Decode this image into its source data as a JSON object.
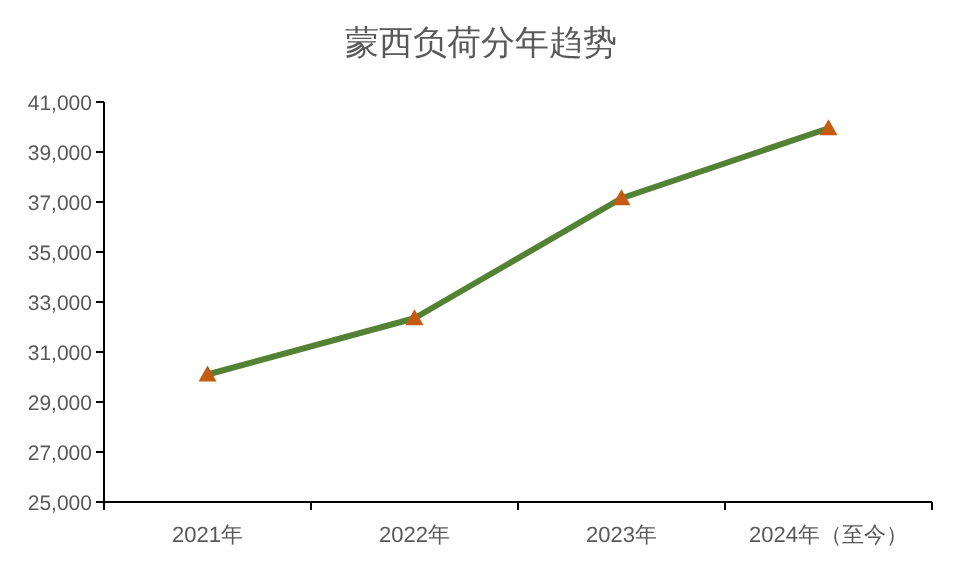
{
  "chart_data": {
    "type": "line",
    "title": "蒙西负荷分年趋势",
    "categories": [
      "2021年",
      "2022年",
      "2023年",
      "2024年（至今）"
    ],
    "series": [
      {
        "color": "#548235",
        "values": [
          30100,
          32350,
          37150,
          39950
        ]
      }
    ],
    "marker": "triangle",
    "ylim": [
      25000,
      41000
    ],
    "yticks": [
      {
        "value": 25000,
        "label": "25,000"
      },
      {
        "value": 27000,
        "label": "27,000"
      },
      {
        "value": 29000,
        "label": "29,000"
      },
      {
        "value": 31000,
        "label": "31,000"
      },
      {
        "value": 33000,
        "label": "33,000"
      },
      {
        "value": 35000,
        "label": "35,000"
      },
      {
        "value": 37000,
        "label": "37,000"
      },
      {
        "value": 39000,
        "label": "39,000"
      },
      {
        "value": 41000,
        "label": "41,000"
      }
    ],
    "grid": false
  }
}
